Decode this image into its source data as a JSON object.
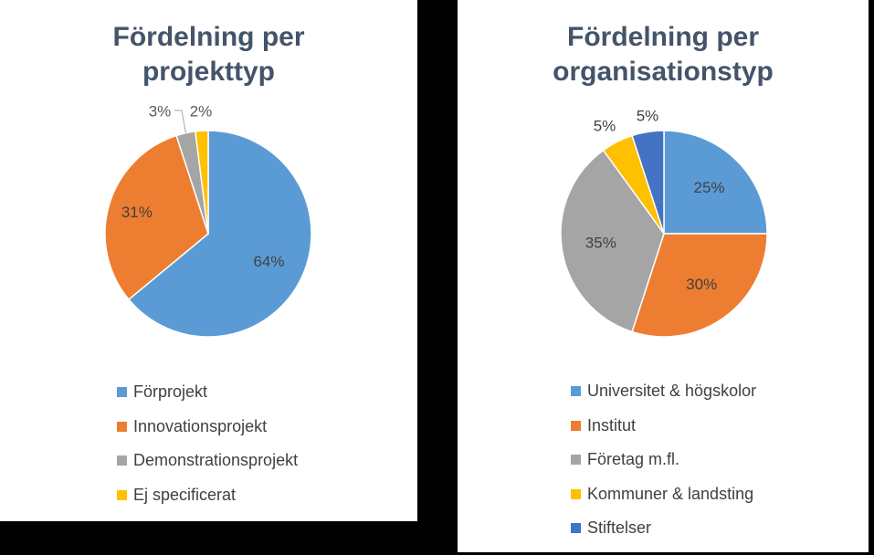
{
  "chart_data": [
    {
      "type": "pie",
      "title": "Fördelning per\nprojekttyp",
      "categories": [
        "Förprojekt",
        "Innovationsprojekt",
        "Demonstrationsprojekt",
        "Ej specificerat"
      ],
      "values": [
        64,
        31,
        3,
        2
      ],
      "data_labels": [
        "64%",
        "31%",
        "3%",
        "2%"
      ],
      "colors": [
        "#5b9bd5",
        "#ed7d31",
        "#a5a5a5",
        "#ffc000"
      ],
      "legend_position": "bottom"
    },
    {
      "type": "pie",
      "title": "Fördelning per\norganisationstyp",
      "categories": [
        "Universitet & högskolor",
        "Institut",
        "Företag m.fl.",
        "Kommuner & landsting",
        "Stiftelser"
      ],
      "values": [
        25,
        30,
        35,
        5,
        5
      ],
      "data_labels": [
        "25%",
        "30%",
        "35%",
        "5%",
        "5%"
      ],
      "colors": [
        "#5b9bd5",
        "#ed7d31",
        "#a5a5a5",
        "#ffc000",
        "#4472c4"
      ],
      "legend_position": "bottom"
    }
  ]
}
